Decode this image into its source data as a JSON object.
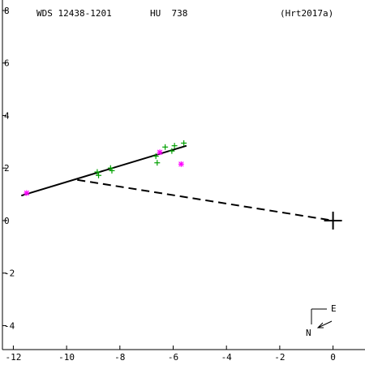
{
  "header": {
    "designation": "WDS 12438-1201",
    "discoverer": "HU  738",
    "reference": "(Hrt2017a)"
  },
  "compass": {
    "east": "E",
    "north": "N"
  },
  "chart_data": {
    "type": "scatter",
    "xlim": [
      -12.5,
      1.2
    ],
    "ylim": [
      -5.5,
      8.4
    ],
    "x_ticks": [
      -12,
      -10,
      -8,
      -6,
      -4,
      -2,
      0
    ],
    "y_ticks": [
      -4,
      -2,
      0,
      2,
      4,
      6,
      8
    ],
    "grid": false,
    "colors": {
      "measure": "#00a000",
      "special": "#ff00ff",
      "line": "#000000"
    },
    "orbit_line": {
      "from": [
        -11.7,
        0.95
      ],
      "to": [
        -5.5,
        2.85
      ]
    },
    "node_line": {
      "from": [
        -9.6,
        1.55
      ],
      "to": [
        0,
        0
      ]
    },
    "primary": [
      0,
      0
    ],
    "series": [
      {
        "marker": "plus",
        "points": [
          [
            -8.85,
            1.85
          ],
          [
            -8.8,
            1.72
          ],
          [
            -8.35,
            2.0
          ],
          [
            -8.3,
            1.9
          ],
          [
            -6.65,
            2.45
          ],
          [
            -6.6,
            2.2
          ],
          [
            -6.3,
            2.8
          ],
          [
            -6.05,
            2.65
          ],
          [
            -5.95,
            2.85
          ],
          [
            -5.6,
            2.95
          ]
        ]
      },
      {
        "marker": "asterisk",
        "points": [
          [
            -11.5,
            1.05
          ],
          [
            -6.5,
            2.6
          ],
          [
            -5.7,
            2.15
          ]
        ]
      }
    ]
  }
}
